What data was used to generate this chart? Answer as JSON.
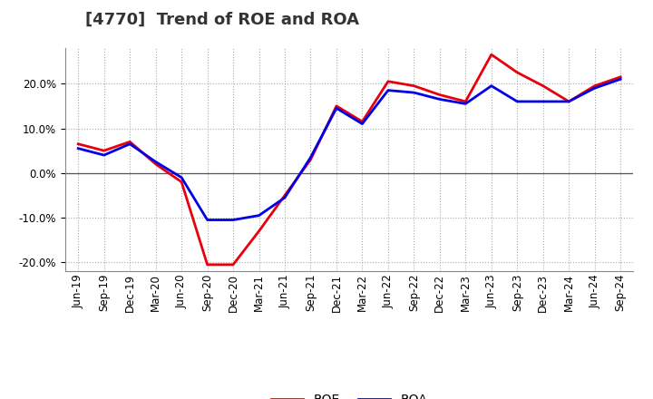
{
  "title": "[4770]  Trend of ROE and ROA",
  "labels": [
    "Jun-19",
    "Sep-19",
    "Dec-19",
    "Mar-20",
    "Jun-20",
    "Sep-20",
    "Dec-20",
    "Mar-21",
    "Jun-21",
    "Sep-21",
    "Dec-21",
    "Mar-22",
    "Jun-22",
    "Sep-22",
    "Dec-22",
    "Mar-23",
    "Jun-23",
    "Sep-23",
    "Dec-23",
    "Mar-24",
    "Jun-24",
    "Sep-24"
  ],
  "ROE": [
    6.5,
    5.0,
    7.0,
    2.0,
    -2.0,
    -20.5,
    -20.5,
    -13.0,
    -5.0,
    3.0,
    15.0,
    11.5,
    20.5,
    19.5,
    17.5,
    16.0,
    26.5,
    22.5,
    19.5,
    16.0,
    19.5,
    21.5
  ],
  "ROA": [
    5.5,
    4.0,
    6.5,
    2.5,
    -1.0,
    -10.5,
    -10.5,
    -9.5,
    -5.5,
    3.5,
    14.5,
    11.0,
    18.5,
    18.0,
    16.5,
    15.5,
    19.5,
    16.0,
    16.0,
    16.0,
    19.0,
    21.0
  ],
  "roe_color": "#e8000d",
  "roa_color": "#0000e8",
  "background_color": "#ffffff",
  "plot_bg_color": "#ffffff",
  "grid_color": "#aaaaaa",
  "ylim": [
    -22,
    28
  ],
  "yticks": [
    -20,
    -10,
    0,
    10,
    20
  ],
  "line_width": 2.0,
  "title_fontsize": 13,
  "tick_fontsize": 8.5,
  "legend_fontsize": 10
}
